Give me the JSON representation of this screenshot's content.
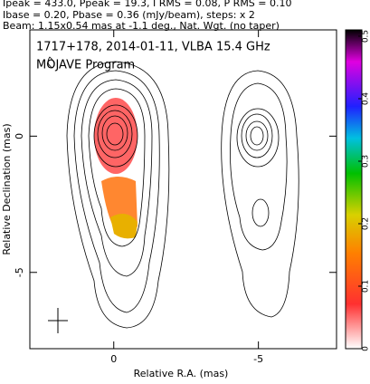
{
  "chart_data": {
    "type": "contour",
    "header": [
      "Ipeak = 433.0, Ppeak = 19.3, I RMS = 0.08, P RMS = 0.10",
      "Ibase = 0.20, Pbase = 0.36 (mJy/beam), steps: x 2",
      "Beam: 1.15x0.54 mas at -1.1 deg., Nat. Wgt. (no taper)"
    ],
    "title": "1717+178, 2014-01-11, VLBA 15.4 GHz",
    "subtitle": "MOJAVE Program",
    "x_label": "Relative R.A. (mas)",
    "y_label": "Relative Declination (mas)",
    "xlim": [
      2.9,
      -7.7
    ],
    "xticks": [
      0,
      -5
    ],
    "ylim": [
      3.9,
      -7.8
    ],
    "yticks": [
      0,
      -5
    ],
    "colorbar": {
      "lim": [
        0,
        0.5
      ],
      "ticks": [
        0,
        0.1,
        0.2,
        0.3,
        0.4,
        0.5
      ]
    }
  }
}
